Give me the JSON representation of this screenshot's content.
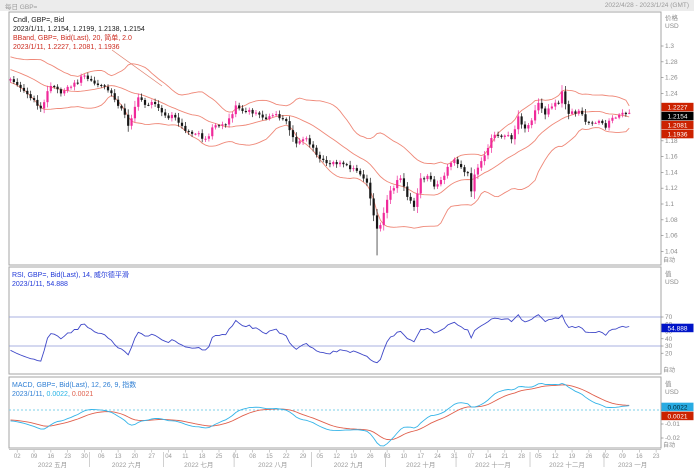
{
  "header": {
    "top_left": "每日 GBP=",
    "top_right": "2022/4/28 - 2023/1/24 (GMT)"
  },
  "colors": {
    "candle_up": "#f0299a",
    "candle_down": "#161616",
    "bollinger": "#ef8878",
    "rsi_line": "#3f48c8",
    "rsi_band": "#8d98d8",
    "macd_line": "#35b4e8",
    "macd_signal": "#e0604d",
    "macd_zero": "#7fd0ea",
    "axis_text": "#8a8a8a",
    "pane_border": "#a6a6a6",
    "legend_black": "#1a1a1a",
    "legend_red": "#cc2a1e",
    "legend_blue": "#2038d8",
    "box_red": "#cc2200",
    "box_black": "#000000",
    "box_blue": "#0014c8",
    "box_cyan": "#29abe2"
  },
  "main_pane": {
    "legend": [
      {
        "parts": [
          {
            "t": "Cndl, GBP=, Bid",
            "c": "#1a1a1a"
          }
        ]
      },
      {
        "parts": [
          {
            "t": "2023/1/11, 1.2154, 1.2199, 1.2138, 1.2154",
            "c": "#1a1a1a"
          }
        ]
      },
      {
        "parts": [
          {
            "t": "BBand, GBP=, Bid(Last), 20, 简单, 2.0",
            "c": "#cc2a1e"
          }
        ]
      },
      {
        "parts": [
          {
            "t": "2023/1/11, 1.2227, 1.2081, 1.1936",
            "c": "#cc2a1e"
          }
        ]
      }
    ],
    "axis": {
      "title": "价格",
      "unit": "USD",
      "auto_label": "自动",
      "ticks": [
        [
          1.3,
          "1.3"
        ],
        [
          1.28,
          "1.28"
        ],
        [
          1.26,
          "1.26"
        ],
        [
          1.24,
          "1.24"
        ],
        [
          1.22,
          "1.22"
        ],
        [
          1.2,
          "1.2"
        ],
        [
          1.18,
          "1.18"
        ],
        [
          1.16,
          "1.16"
        ],
        [
          1.14,
          "1.14"
        ],
        [
          1.12,
          "1.12"
        ],
        [
          1.1,
          "1.1"
        ],
        [
          1.08,
          "1.08"
        ],
        [
          1.06,
          "1.06"
        ],
        [
          1.04,
          "1.04"
        ]
      ],
      "boxes": [
        {
          "t": "1.2227",
          "v": 1.2227,
          "bg": "#cc2200",
          "fg": "#ffffff"
        },
        {
          "t": "1.2154",
          "v": 1.2154,
          "bg": "#000000",
          "fg": "#ffffff"
        },
        {
          "t": "1.2081",
          "v": 1.2081,
          "bg": "#cc2200",
          "fg": "#ffffff"
        },
        {
          "t": "1.1936",
          "v": 1.1936,
          "bg": "#cc2200",
          "fg": "#ffffff"
        }
      ]
    }
  },
  "rsi_pane": {
    "legend": [
      {
        "parts": [
          {
            "t": "RSI, GBP=, Bid(Last), 14, 威尔德平滑",
            "c": "#2038d8"
          }
        ]
      },
      {
        "parts": [
          {
            "t": "2023/1/11, 54.888",
            "c": "#2038d8"
          }
        ]
      }
    ],
    "axis": {
      "title": "值",
      "unit": "USD",
      "auto_label": "自动",
      "ticks": [
        [
          70,
          "70"
        ],
        [
          60,
          "60"
        ],
        [
          50,
          "50"
        ],
        [
          40,
          "40"
        ],
        [
          30,
          "30"
        ],
        [
          20,
          "20"
        ]
      ],
      "boxes": [
        {
          "t": "54.888",
          "v": 54.888,
          "bg": "#0014c8",
          "fg": "#ffffff"
        }
      ]
    }
  },
  "macd_pane": {
    "legend": [
      {
        "parts": [
          {
            "t": "MACD, GBP=, Bid(Last), 12, 26, 9, 指数",
            "c": "#2f7fd4"
          }
        ]
      },
      {
        "parts": [
          {
            "t": "2023/1/11, ",
            "c": "#2f7fd4"
          },
          {
            "t": "0.0022",
            "c": "#27b3e6"
          },
          {
            "t": ", ",
            "c": "#2f7fd4"
          },
          {
            "t": "0.0021",
            "c": "#e0604d"
          }
        ]
      }
    ],
    "axis": {
      "title": "值",
      "unit": "USD",
      "auto_label": "自动",
      "ticks": [
        [
          0,
          "0"
        ],
        [
          -0.01,
          "-0.01"
        ],
        [
          -0.02,
          "-0.02"
        ]
      ],
      "boxes": [
        {
          "t": "0.0022",
          "v": 0.0022,
          "bg": "#29abe2",
          "fg": "#00222e"
        },
        {
          "t": "0.0021",
          "v": 0.0021,
          "bg": "#cc2200",
          "fg": "#ffffff"
        }
      ]
    }
  },
  "x_axis": {
    "months": [
      {
        "label": "2022 五月",
        "start_idx": 2,
        "end_idx": 23,
        "days": [
          "02",
          "09",
          "16",
          "23",
          "30"
        ],
        "day_idx": [
          2,
          7,
          12,
          17,
          22
        ]
      },
      {
        "label": "2022 六月",
        "start_idx": 24,
        "end_idx": 45,
        "days": [
          "06",
          "13",
          "20",
          "27"
        ],
        "day_idx": [
          27,
          32,
          37,
          42
        ]
      },
      {
        "label": "2022 七月",
        "start_idx": 46,
        "end_idx": 66,
        "days": [
          "04",
          "11",
          "18",
          "25"
        ],
        "day_idx": [
          47,
          52,
          57,
          62
        ]
      },
      {
        "label": "2022 八月",
        "start_idx": 67,
        "end_idx": 89,
        "days": [
          "01",
          "08",
          "15",
          "22",
          "29"
        ],
        "day_idx": [
          67,
          72,
          77,
          82,
          87
        ]
      },
      {
        "label": "2022 九月",
        "start_idx": 90,
        "end_idx": 111,
        "days": [
          "05",
          "12",
          "19",
          "26"
        ],
        "day_idx": [
          92,
          97,
          102,
          107
        ]
      },
      {
        "label": "2022 十月",
        "start_idx": 112,
        "end_idx": 132,
        "days": [
          "03",
          "10",
          "17",
          "24",
          "31"
        ],
        "day_idx": [
          112,
          117,
          122,
          127,
          132
        ]
      },
      {
        "label": "2022 十一月",
        "start_idx": 133,
        "end_idx": 154,
        "days": [
          "07",
          "14",
          "21",
          "28"
        ],
        "day_idx": [
          137,
          142,
          147,
          152
        ]
      },
      {
        "label": "2022 十二月",
        "start_idx": 155,
        "end_idx": 176,
        "days": [
          "05",
          "12",
          "19",
          "26"
        ],
        "day_idx": [
          157,
          162,
          167,
          172
        ]
      },
      {
        "label": "2023 一月",
        "start_idx": 177,
        "end_idx": 193,
        "days": [
          "02",
          "09",
          "16",
          "23"
        ],
        "day_idx": [
          177,
          182,
          187,
          192
        ]
      }
    ]
  },
  "chart_data": {
    "type": "candlestick",
    "instrument": "GBP= (GBP/USD, Bid)",
    "interval": "daily",
    "visible_range": "2022/4/28 - 2023/1/24 (GMT)",
    "price_axis_range": [
      1.03,
      1.315
    ],
    "grid": false,
    "candles_count": 185,
    "slots_total": 194,
    "last_candle": {
      "index": 184,
      "date": "2023/1/11",
      "open": 1.2154,
      "high": 1.2199,
      "low": 1.2138,
      "close": 1.2154
    },
    "extreme_low": {
      "index": 109,
      "date": "2022/9/26",
      "price": 1.035
    },
    "pre_trend": [
      1.298,
      1.258
    ],
    "close_anchors": [
      [
        0,
        1.258
      ],
      [
        3,
        1.247
      ],
      [
        6,
        1.234
      ],
      [
        9,
        1.221
      ],
      [
        12,
        1.2494
      ],
      [
        15,
        1.24
      ],
      [
        18,
        1.2485
      ],
      [
        22,
        1.2626
      ],
      [
        25,
        1.2525
      ],
      [
        28,
        1.2485
      ],
      [
        31,
        1.232
      ],
      [
        34,
        1.213
      ],
      [
        35,
        1.199
      ],
      [
        38,
        1.235
      ],
      [
        40,
        1.2255
      ],
      [
        43,
        1.2265
      ],
      [
        46,
        1.212
      ],
      [
        49,
        1.2095
      ],
      [
        52,
        1.1925
      ],
      [
        55,
        1.189
      ],
      [
        58,
        1.1826
      ],
      [
        61,
        1.1997
      ],
      [
        64,
        1.2006
      ],
      [
        67,
        1.2248
      ],
      [
        70,
        1.2165
      ],
      [
        73,
        1.2157
      ],
      [
        76,
        1.2075
      ],
      [
        79,
        1.2138
      ],
      [
        82,
        1.2049
      ],
      [
        85,
        1.1766
      ],
      [
        88,
        1.1832
      ],
      [
        91,
        1.1622
      ],
      [
        94,
        1.1517
      ],
      [
        97,
        1.1504
      ],
      [
        100,
        1.1491
      ],
      [
        103,
        1.142
      ],
      [
        106,
        1.127
      ],
      [
        108,
        1.0856
      ],
      [
        109,
        1.0688
      ],
      [
        110,
        1.0733
      ],
      [
        111,
        1.0888
      ],
      [
        113,
        1.117
      ],
      [
        116,
        1.1325
      ],
      [
        118,
        1.109
      ],
      [
        120,
        1.0963
      ],
      [
        122,
        1.1325
      ],
      [
        124,
        1.1356
      ],
      [
        126,
        1.1221
      ],
      [
        128,
        1.1304
      ],
      [
        130,
        1.147
      ],
      [
        132,
        1.1565
      ],
      [
        134,
        1.1466
      ],
      [
        136,
        1.139
      ],
      [
        137,
        1.116
      ],
      [
        138,
        1.1373
      ],
      [
        140,
        1.1543
      ],
      [
        142,
        1.1709
      ],
      [
        143,
        1.1835
      ],
      [
        145,
        1.1866
      ],
      [
        147,
        1.1866
      ],
      [
        149,
        1.182
      ],
      [
        151,
        1.2109
      ],
      [
        153,
        1.1956
      ],
      [
        155,
        1.2058
      ],
      [
        157,
        1.228
      ],
      [
        159,
        1.2133
      ],
      [
        161,
        1.2234
      ],
      [
        163,
        1.2273
      ],
      [
        164,
        1.2426
      ],
      [
        166,
        1.2141
      ],
      [
        169,
        1.218
      ],
      [
        171,
        1.204
      ],
      [
        173,
        1.2025
      ],
      [
        175,
        1.2053
      ],
      [
        177,
        1.1966
      ],
      [
        178,
        1.2054
      ],
      [
        180,
        1.2094
      ],
      [
        182,
        1.2154
      ],
      [
        183,
        1.2138
      ],
      [
        184,
        1.2154
      ]
    ],
    "indicators": {
      "bollinger": {
        "period": 20,
        "method": "简单",
        "width": 2.0,
        "last_upper": 1.2227,
        "last_middle": 1.2081,
        "last_lower": 1.1936
      },
      "rsi": {
        "period": 14,
        "method": "威尔德平滑",
        "last": 54.888,
        "band_levels": [
          70,
          30
        ]
      },
      "macd": {
        "fast": 12,
        "slow": 26,
        "signal": 9,
        "method": "指数",
        "last_macd": 0.0022,
        "last_signal": 0.0021
      }
    }
  }
}
